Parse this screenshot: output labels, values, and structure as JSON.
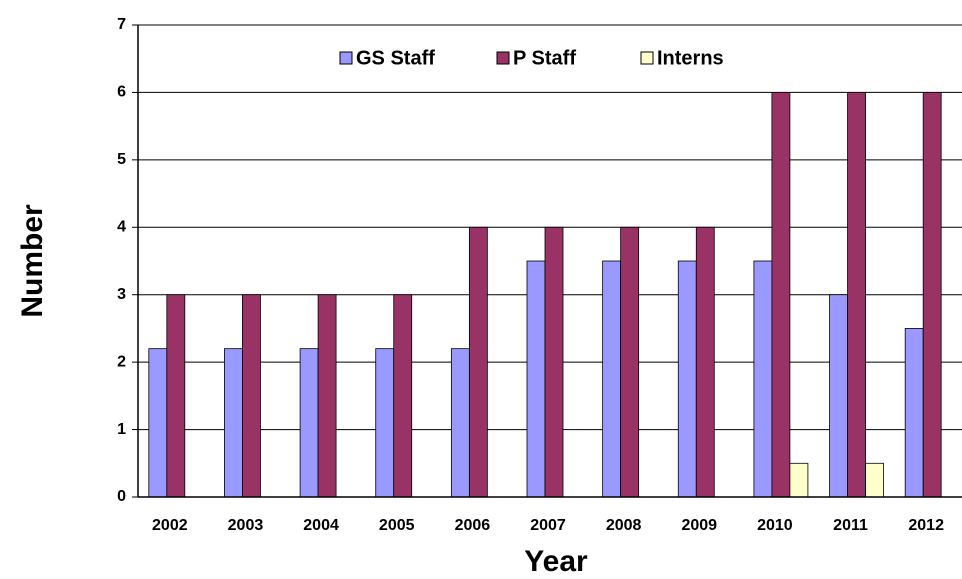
{
  "chart_data": {
    "type": "bar",
    "categories": [
      "2002",
      "2003",
      "2004",
      "2005",
      "2006",
      "2007",
      "2008",
      "2009",
      "2010",
      "2011",
      "2012"
    ],
    "series": [
      {
        "name": "GS Staff",
        "color": "#9999ff",
        "values": [
          2.2,
          2.2,
          2.2,
          2.2,
          2.2,
          3.5,
          3.5,
          3.5,
          3.5,
          3,
          2.5
        ]
      },
      {
        "name": "P Staff",
        "color": "#993366",
        "values": [
          3,
          3,
          3,
          3,
          4,
          4,
          4,
          4,
          6,
          6,
          6
        ]
      },
      {
        "name": "Interns",
        "color": "#ffffcc",
        "values": [
          0,
          0,
          0,
          0,
          0,
          0,
          0,
          0,
          0.5,
          0.5,
          0
        ]
      }
    ],
    "xlabel": "Year",
    "ylabel": "Number",
    "ylim": [
      0,
      7
    ],
    "yticks": [
      0,
      1,
      2,
      3,
      4,
      5,
      6,
      7
    ],
    "grid": true,
    "legend": "top"
  }
}
